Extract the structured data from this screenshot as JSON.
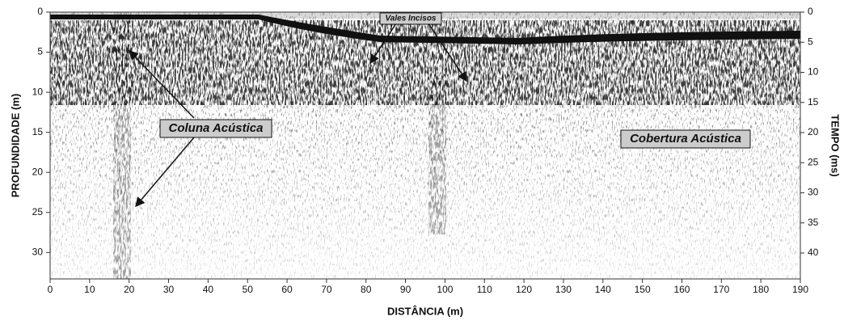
{
  "chart_data": {
    "type": "seismic",
    "xlabel": "DISTÂNCIA (m)",
    "ylabel": "PROFUNDIDADE (m)",
    "y2label": "TEMPO (ms)",
    "xlim": [
      0,
      190
    ],
    "xticks": [
      0,
      10,
      20,
      30,
      40,
      50,
      60,
      70,
      80,
      90,
      100,
      110,
      120,
      130,
      140,
      150,
      160,
      170,
      180,
      190
    ],
    "ylim": [
      33.3,
      0
    ],
    "yticks": [
      0,
      5,
      10,
      15,
      20,
      25,
      30
    ],
    "y2lim": [
      44.3,
      0
    ],
    "y2ticks": [
      0,
      5,
      10,
      15,
      20,
      25,
      30,
      35,
      40
    ],
    "annotations": [
      "Vales Incisos",
      "Coluna Acústica",
      "Cobertura Acústica"
    ]
  }
}
